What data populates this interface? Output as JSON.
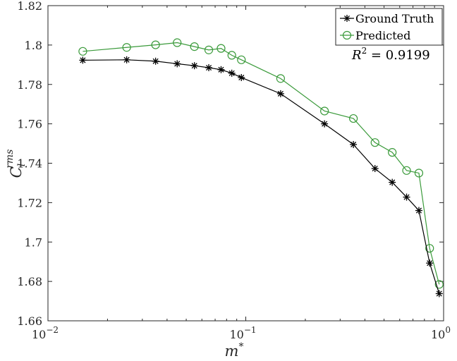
{
  "chart_data": {
    "type": "line",
    "xscale": "log",
    "xlim": [
      0.01,
      1
    ],
    "ylim": [
      1.66,
      1.82
    ],
    "xlabel": "m*",
    "ylabel": "Cl^rms",
    "xticks": [
      {
        "value": 0.01,
        "base": "10",
        "exp": "−2"
      },
      {
        "value": 0.1,
        "base": "10",
        "exp": "−1"
      },
      {
        "value": 1,
        "base": "10",
        "exp": "0"
      }
    ],
    "yticks": [
      1.66,
      1.68,
      1.7,
      1.72,
      1.74,
      1.76,
      1.78,
      1.8,
      1.82
    ],
    "ytick_labels": [
      "1.66",
      "1.68",
      "1.7",
      "1.72",
      "1.74",
      "1.76",
      "1.78",
      "1.8",
      "1.82"
    ],
    "x": [
      0.015,
      0.025,
      0.035,
      0.045,
      0.055,
      0.065,
      0.075,
      0.085,
      0.095,
      0.15,
      0.25,
      0.35,
      0.45,
      0.55,
      0.65,
      0.75,
      0.85,
      0.95
    ],
    "series": [
      {
        "name": "Ground Truth",
        "color": "#000000",
        "marker": "asterisk",
        "values": [
          1.7923,
          1.7925,
          1.7918,
          1.7905,
          1.7895,
          1.7885,
          1.7875,
          1.7857,
          1.7835,
          1.7753,
          1.76,
          1.7495,
          1.7373,
          1.7303,
          1.7228,
          1.716,
          1.6893,
          1.6738
        ]
      },
      {
        "name": "Predicted",
        "color": "#3a9a3a",
        "marker": "circle",
        "values": [
          1.7968,
          1.7988,
          1.8001,
          1.8012,
          1.7992,
          1.7975,
          1.7983,
          1.7948,
          1.7925,
          1.783,
          1.7665,
          1.7627,
          1.7505,
          1.7455,
          1.7363,
          1.735,
          1.6968,
          1.6785
        ]
      }
    ],
    "legend_position": "top-right",
    "annotation": {
      "lhs": "R",
      "sup": "2",
      "rhs": " = 0.9199"
    }
  }
}
